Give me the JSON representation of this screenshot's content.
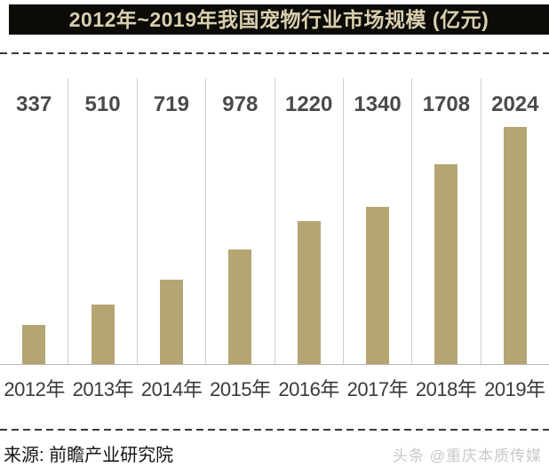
{
  "title": "2012年~2019年我国宠物行业市场规模 (亿元)",
  "source": "来源: 前瞻产业研究院",
  "watermark": "头条 @重庆本质传媒",
  "chart_data": {
    "type": "bar",
    "title": "2012年~2019年我国宠物行业市场规模 (亿元)",
    "categories": [
      "2012年",
      "2013年",
      "2014年",
      "2015年",
      "2016年",
      "2017年",
      "2018年",
      "2019年"
    ],
    "values": [
      337,
      510,
      719,
      978,
      1220,
      1340,
      1708,
      2024
    ],
    "xlabel": "",
    "ylabel": "亿元",
    "ylim": [
      0,
      2024
    ],
    "grid": "vertical-column-separators",
    "legend": "none",
    "value_labels": "top-of-column",
    "unit": "亿元"
  },
  "colors": {
    "title_bg": "#0d0b08",
    "title_text": "#d9cfae",
    "bar": "#b5a573",
    "value_label": "#4a4a4a",
    "year_label": "#3a3a3a",
    "gridline": "#cfcfcf",
    "baseline": "#b5b5b5",
    "dashed_divider": "#3a3a3a",
    "source_text": "#141414",
    "watermark": "#c8c8c8"
  }
}
